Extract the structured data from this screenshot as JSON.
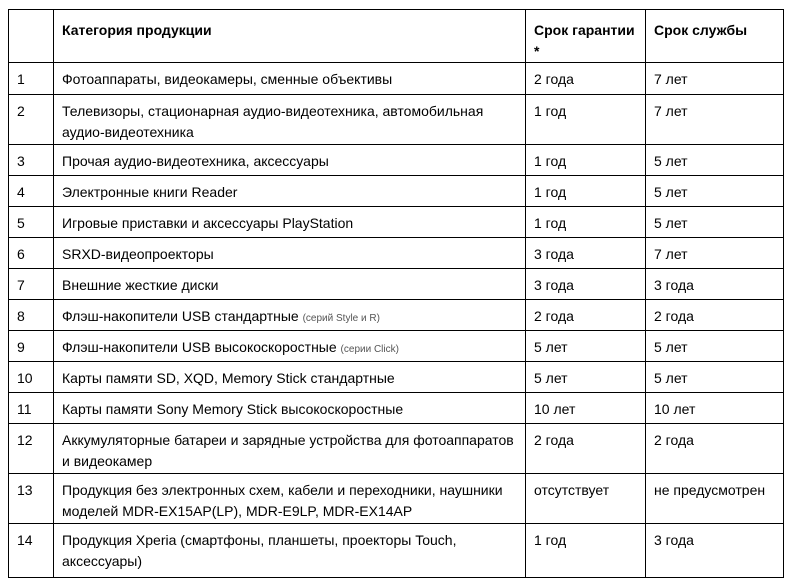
{
  "header": {
    "num": "",
    "category": "Категория продукции",
    "warranty": "Срок гарантии *",
    "service": "Срок службы"
  },
  "rows": [
    {
      "num": "1",
      "category": "Фотоаппараты, видеокамеры, сменные объективы",
      "note": "",
      "warranty": "2 года",
      "service": "7 лет"
    },
    {
      "num": "2",
      "category": "Телевизоры, стационарная аудио-видеотехника, автомобильная аудио-видеотехника",
      "note": "",
      "warranty": "1 год",
      "service": "7 лет"
    },
    {
      "num": "3",
      "category": "Прочая аудио-видеотехника, аксессуары",
      "note": "",
      "warranty": "1 год",
      "service": "5 лет"
    },
    {
      "num": "4",
      "category": "Электронные книги Reader",
      "note": "",
      "warranty": "1 год",
      "service": "5 лет"
    },
    {
      "num": "5",
      "category": "Игровые приставки и аксессуары PlayStation",
      "note": "",
      "warranty": "1 год",
      "service": "5 лет"
    },
    {
      "num": "6",
      "category": "SRXD-видеопроекторы",
      "note": "",
      "warranty": "3 года",
      "service": "7 лет"
    },
    {
      "num": "7",
      "category": "Внешние жесткие диски",
      "note": "",
      "warranty": "3 года",
      "service": "3 года"
    },
    {
      "num": "8",
      "category": "Флэш-накопители USB стандартные",
      "note": "(серий Style и R)",
      "warranty": "2 года",
      "service": "2 года"
    },
    {
      "num": "9",
      "category": "Флэш-накопители USB высокоскоростные",
      "note": "(серии Click)",
      "warranty": "5 лет",
      "service": "5 лет"
    },
    {
      "num": "10",
      "category": "Карты памяти SD, XQD, Memory Stick стандартные",
      "note": "",
      "warranty": "5 лет",
      "service": "5 лет"
    },
    {
      "num": "11",
      "category": "Карты памяти Sony Memory Stick высокоскоростные",
      "note": "",
      "warranty": "10 лет",
      "service": "10 лет"
    },
    {
      "num": "12",
      "category": "Аккумуляторные батареи и зарядные устройства для фотоаппаратов и видеокамер",
      "note": "",
      "warranty": "2 года",
      "service": "2 года"
    },
    {
      "num": "13",
      "category": "Продукция без электронных схем, кабели и переходники, наушники моделей MDR-EX15AP(LP), MDR-E9LP, MDR-EX14AP",
      "note": "",
      "warranty": "отсутствует",
      "service": "не предусмотрен"
    },
    {
      "num": "14",
      "category": "Продукция Xperia (смартфоны, планшеты, проекторы Touch, аксессуары)",
      "note": "",
      "warranty": "1 год",
      "service": "3 года"
    }
  ]
}
